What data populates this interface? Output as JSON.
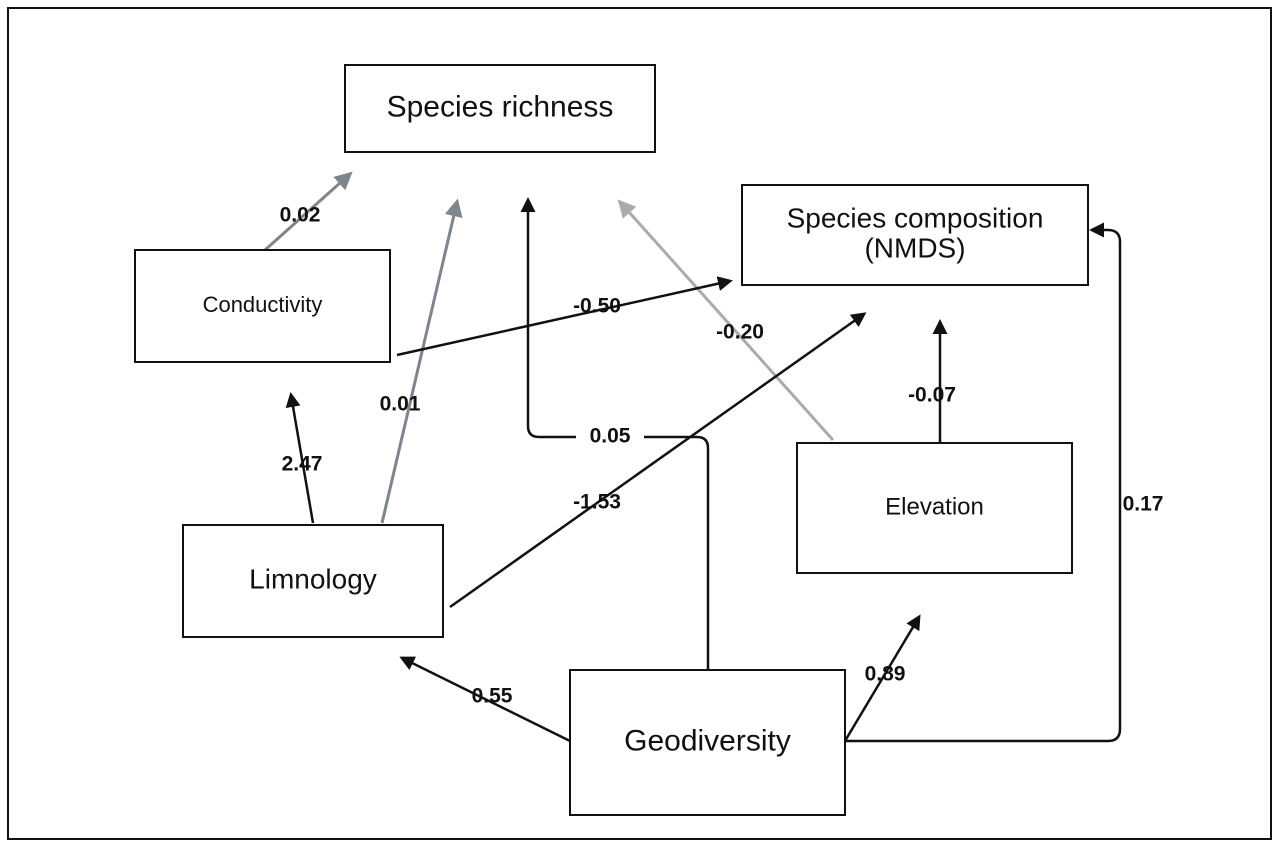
{
  "nodes": [
    {
      "label": "Species richness"
    },
    {
      "label": [
        "Species composition",
        "(NMDS)"
      ]
    },
    {
      "label": "Conductivity"
    },
    {
      "label": "Limnology"
    },
    {
      "label": "Elevation"
    },
    {
      "label": "Geodiversity"
    }
  ],
  "edges": [
    {
      "label": "0.02",
      "color": "#7d858e"
    },
    {
      "label": "0.01",
      "color": "#7d858e"
    },
    {
      "label": "0.05",
      "color": "#111111"
    },
    {
      "label": "-0.20",
      "color": "#ababab"
    },
    {
      "label": "-0.50",
      "color": "#111111"
    },
    {
      "label": "-1.53",
      "color": "#111111"
    },
    {
      "label": "-0.07",
      "color": "#111111"
    },
    {
      "label": "0.17",
      "color": "#111111"
    },
    {
      "label": "2.47",
      "color": "#111111"
    },
    {
      "label": "0.55",
      "color": "#111111"
    },
    {
      "label": "0.89",
      "color": "#111111"
    }
  ]
}
